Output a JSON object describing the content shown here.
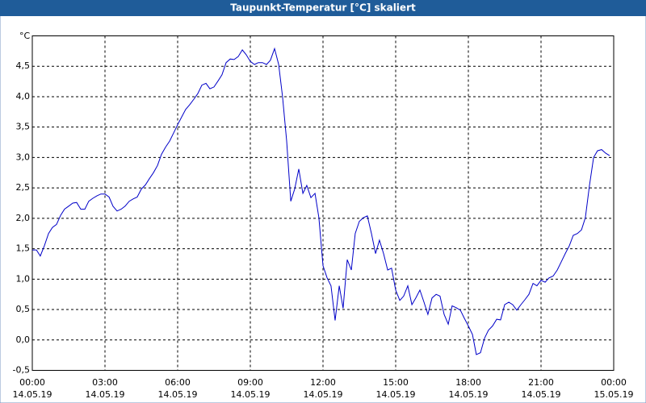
{
  "chart_data": {
    "type": "line",
    "title": "Taupunkt-Temperatur [°C] skaliert",
    "y_unit": "°C",
    "x": [
      0,
      0.17,
      0.33,
      0.5,
      0.67,
      0.83,
      1,
      1.17,
      1.33,
      1.5,
      1.67,
      1.83,
      2,
      2.17,
      2.33,
      2.5,
      2.67,
      2.83,
      3,
      3.17,
      3.33,
      3.5,
      3.67,
      3.83,
      4,
      4.17,
      4.33,
      4.5,
      4.67,
      4.83,
      5,
      5.17,
      5.33,
      5.5,
      5.67,
      5.83,
      6,
      6.17,
      6.33,
      6.5,
      6.67,
      6.83,
      7,
      7.17,
      7.33,
      7.5,
      7.67,
      7.83,
      8,
      8.17,
      8.33,
      8.5,
      8.67,
      8.83,
      9,
      9.17,
      9.33,
      9.5,
      9.67,
      9.83,
      10,
      10.17,
      10.33,
      10.5,
      10.67,
      10.83,
      11,
      11.17,
      11.33,
      11.5,
      11.67,
      11.83,
      12,
      12.17,
      12.33,
      12.5,
      12.67,
      12.83,
      13,
      13.17,
      13.33,
      13.5,
      13.67,
      13.83,
      14,
      14.17,
      14.33,
      14.5,
      14.67,
      14.83,
      15,
      15.17,
      15.33,
      15.5,
      15.67,
      15.83,
      16,
      16.17,
      16.33,
      16.5,
      16.67,
      16.83,
      17,
      17.17,
      17.33,
      17.5,
      17.67,
      17.83,
      18,
      18.17,
      18.33,
      18.5,
      18.67,
      18.83,
      19,
      19.17,
      19.33,
      19.5,
      19.67,
      19.83,
      20,
      20.17,
      20.33,
      20.5,
      20.67,
      20.83,
      21,
      21.17,
      21.33,
      21.5,
      21.67,
      21.83,
      22,
      22.17,
      22.33,
      22.5,
      22.67,
      22.83,
      23,
      23.17,
      23.33,
      23.5,
      23.67,
      23.83
    ],
    "series": [
      {
        "name": "Taupunkt-Temperatur",
        "color": "#0000c8",
        "values": [
          1.48,
          1.48,
          1.38,
          1.55,
          1.75,
          1.85,
          1.9,
          2.05,
          2.15,
          2.2,
          2.25,
          2.26,
          2.15,
          2.15,
          2.28,
          2.33,
          2.37,
          2.4,
          2.4,
          2.35,
          2.2,
          2.12,
          2.15,
          2.2,
          2.28,
          2.32,
          2.35,
          2.48,
          2.55,
          2.65,
          2.75,
          2.87,
          3.05,
          3.17,
          3.27,
          3.4,
          3.54,
          3.67,
          3.79,
          3.87,
          3.96,
          4.05,
          4.19,
          4.22,
          4.13,
          4.16,
          4.26,
          4.36,
          4.56,
          4.62,
          4.61,
          4.66,
          4.77,
          4.69,
          4.58,
          4.53,
          4.56,
          4.56,
          4.53,
          4.6,
          4.79,
          4.53,
          4.0,
          3.27,
          2.28,
          2.48,
          2.81,
          2.41,
          2.54,
          2.34,
          2.41,
          2.01,
          1.22,
          1.02,
          0.89,
          0.32,
          0.89,
          0.52,
          1.32,
          1.15,
          1.75,
          1.95,
          2.01,
          2.04,
          1.75,
          1.42,
          1.64,
          1.42,
          1.15,
          1.18,
          0.82,
          0.65,
          0.72,
          0.89,
          0.58,
          0.69,
          0.82,
          0.62,
          0.42,
          0.69,
          0.75,
          0.72,
          0.42,
          0.26,
          0.56,
          0.53,
          0.49,
          0.36,
          0.23,
          0.09,
          -0.24,
          -0.21,
          0.03,
          0.16,
          0.23,
          0.34,
          0.33,
          0.58,
          0.62,
          0.58,
          0.49,
          0.58,
          0.66,
          0.75,
          0.93,
          0.89,
          0.98,
          0.95,
          1.02,
          1.05,
          1.15,
          1.28,
          1.42,
          1.55,
          1.72,
          1.75,
          1.81,
          2.01,
          2.54,
          3.0,
          3.11,
          3.13,
          3.07,
          3.03
        ]
      }
    ],
    "xlim": [
      0,
      24
    ],
    "xticks": [
      {
        "value": 0,
        "label": "00:00",
        "date": "14.05.19"
      },
      {
        "value": 3,
        "label": "03:00",
        "date": "14.05.19"
      },
      {
        "value": 6,
        "label": "06:00",
        "date": "14.05.19"
      },
      {
        "value": 9,
        "label": "09:00",
        "date": "14.05.19"
      },
      {
        "value": 12,
        "label": "12:00",
        "date": "14.05.19"
      },
      {
        "value": 15,
        "label": "15:00",
        "date": "14.05.19"
      },
      {
        "value": 18,
        "label": "18:00",
        "date": "14.05.19"
      },
      {
        "value": 21,
        "label": "21:00",
        "date": "14.05.19"
      },
      {
        "value": 24,
        "label": "00:00",
        "date": "15.05.19"
      }
    ],
    "ylim": [
      -0.5,
      5
    ],
    "yticks": [
      {
        "value": -0.5,
        "label": "-0,5"
      },
      {
        "value": 0,
        "label": "0,0"
      },
      {
        "value": 0.5,
        "label": "0,5"
      },
      {
        "value": 1,
        "label": "1,0"
      },
      {
        "value": 1.5,
        "label": "1,5"
      },
      {
        "value": 2,
        "label": "2,0"
      },
      {
        "value": 2.5,
        "label": "2,5"
      },
      {
        "value": 3,
        "label": "3,0"
      },
      {
        "value": 3.5,
        "label": "3,5"
      },
      {
        "value": 4,
        "label": "4,0"
      },
      {
        "value": 4.5,
        "label": "4,5"
      }
    ],
    "grid": true
  }
}
